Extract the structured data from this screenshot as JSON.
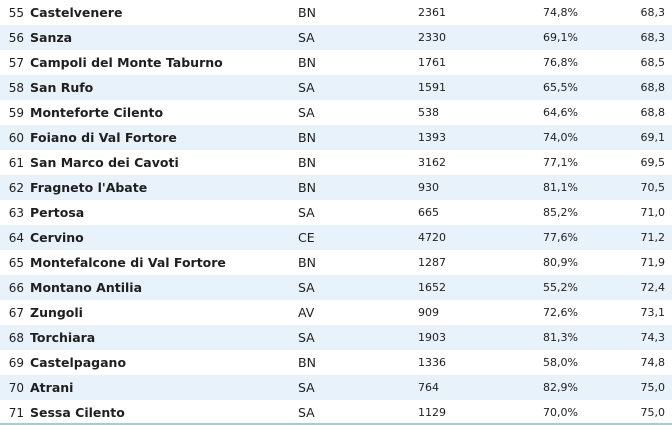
{
  "rows": [
    {
      "rank": "55",
      "name": "Castelvenere",
      "prov": "BN",
      "pop": "2361",
      "pct": "74,8%",
      "score": "68,3"
    },
    {
      "rank": "56",
      "name": "Sanza",
      "prov": "SA",
      "pop": "2330",
      "pct": "69,1%",
      "score": "68,3"
    },
    {
      "rank": "57",
      "name": "Campoli del Monte Taburno",
      "prov": "BN",
      "pop": "1761",
      "pct": "76,8%",
      "score": "68,5"
    },
    {
      "rank": "58",
      "name": "San Rufo",
      "prov": "SA",
      "pop": "1591",
      "pct": "65,5%",
      "score": "68,8"
    },
    {
      "rank": "59",
      "name": "Monteforte Cilento",
      "prov": "SA",
      "pop": "538",
      "pct": "64,6%",
      "score": "68,8"
    },
    {
      "rank": "60",
      "name": "Foiano di Val Fortore",
      "prov": "BN",
      "pop": "1393",
      "pct": "74,0%",
      "score": "69,1"
    },
    {
      "rank": "61",
      "name": "San Marco dei Cavoti",
      "prov": "BN",
      "pop": "3162",
      "pct": "77,1%",
      "score": "69,5"
    },
    {
      "rank": "62",
      "name": "Fragneto l'Abate",
      "prov": "BN",
      "pop": "930",
      "pct": "81,1%",
      "score": "70,5"
    },
    {
      "rank": "63",
      "name": "Pertosa",
      "prov": "SA",
      "pop": "665",
      "pct": "85,2%",
      "score": "71,0"
    },
    {
      "rank": "64",
      "name": "Cervino",
      "prov": "CE",
      "pop": "4720",
      "pct": "77,6%",
      "score": "71,2"
    },
    {
      "rank": "65",
      "name": "Montefalcone di Val Fortore",
      "prov": "BN",
      "pop": "1287",
      "pct": "80,9%",
      "score": "71,9"
    },
    {
      "rank": "66",
      "name": "Montano Antilia",
      "prov": "SA",
      "pop": "1652",
      "pct": "55,2%",
      "score": "72,4"
    },
    {
      "rank": "67",
      "name": "Zungoli",
      "prov": "AV",
      "pop": "909",
      "pct": "72,6%",
      "score": "73,1"
    },
    {
      "rank": "68",
      "name": "Torchiara",
      "prov": "SA",
      "pop": "1903",
      "pct": "81,3%",
      "score": "74,3"
    },
    {
      "rank": "69",
      "name": "Castelpagano",
      "prov": "BN",
      "pop": "1336",
      "pct": "58,0%",
      "score": "74,8"
    },
    {
      "rank": "70",
      "name": "Atrani",
      "prov": "SA",
      "pop": "764",
      "pct": "82,9%",
      "score": "75,0"
    },
    {
      "rank": "71",
      "name": "Sessa Cilento",
      "prov": "SA",
      "pop": "1129",
      "pct": "70,0%",
      "score": "75,0"
    }
  ]
}
